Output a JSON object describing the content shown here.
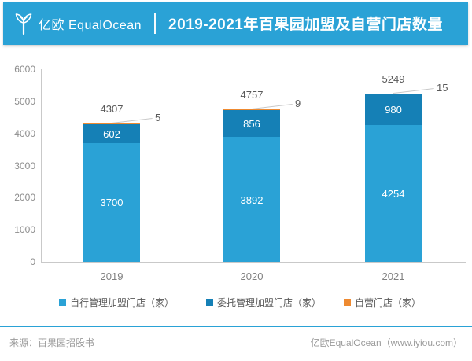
{
  "header": {
    "brand": "亿欧 EqualOcean",
    "title": "2019-2021年百果园加盟及自营门店数量",
    "background": "#2AA2D6"
  },
  "chart_data": {
    "type": "bar",
    "stacked": true,
    "title": "2019-2021年百果园加盟及自营门店数量",
    "categories": [
      "2019",
      "2020",
      "2021"
    ],
    "series": [
      {
        "name": "自行管理加盟门店（家）",
        "color": "#2AA2D6",
        "values": [
          3700,
          3892,
          4254
        ]
      },
      {
        "name": "委托管理加盟门店（家）",
        "color": "#1580B6",
        "values": [
          602,
          856,
          980
        ]
      },
      {
        "name": "自营门店（家）",
        "color": "#EE8A31",
        "values": [
          5,
          9,
          15
        ]
      }
    ],
    "totals": [
      4307,
      4757,
      5249
    ],
    "ylim": [
      0,
      6000
    ],
    "yticks": [
      0,
      1000,
      2000,
      3000,
      4000,
      5000,
      6000
    ],
    "grid": false,
    "legend_position": "bottom",
    "axis_color": "#C9C9C9"
  },
  "footer": {
    "source": "来源：百果园招股书",
    "credit": "亿欧EqualOcean（www.iyiou.com）"
  }
}
